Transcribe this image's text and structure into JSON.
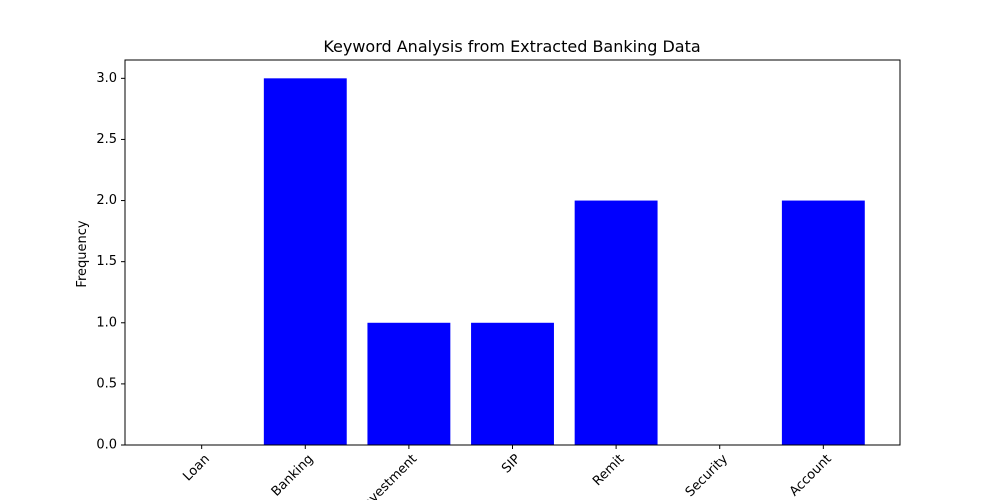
{
  "chart_data": {
    "type": "bar",
    "title": "Keyword Analysis from Extracted Banking Data",
    "xlabel": "",
    "ylabel": "Frequency",
    "categories": [
      "Loan",
      "Banking",
      "Investment",
      "SIP",
      "Remit",
      "Security",
      "Account"
    ],
    "values": [
      0,
      3,
      1,
      1,
      2,
      0,
      2
    ],
    "ylim": [
      0,
      3.15
    ],
    "yticks": [
      0.0,
      0.5,
      1.0,
      1.5,
      2.0,
      2.5,
      3.0
    ],
    "ytick_labels": [
      "0.0",
      "0.5",
      "1.0",
      "1.5",
      "2.0",
      "2.5",
      "3.0"
    ],
    "bar_color": "#0000ff",
    "grid": false,
    "legend": "none"
  }
}
